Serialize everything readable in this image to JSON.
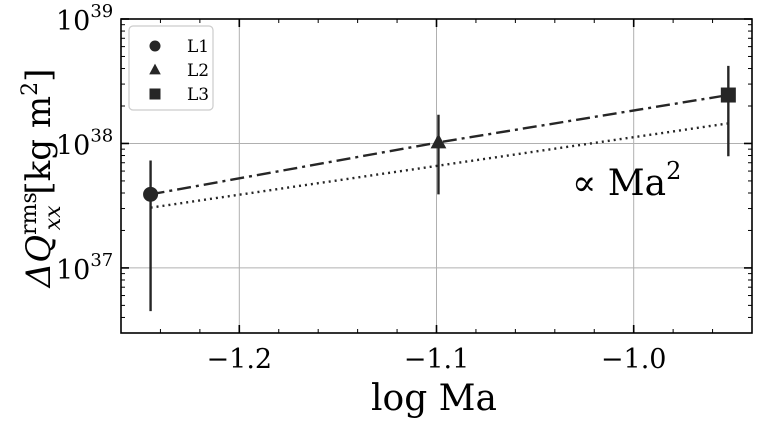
{
  "chart_data": {
    "type": "scatter",
    "title": "",
    "xlabel": "log Ma",
    "ylabel": {
      "prefix": "ΔQ",
      "superscript": "rms",
      "subscript": "xx",
      "unit_open": " [kg m",
      "unit_power": "2",
      "unit_close": "]"
    },
    "xlim": [
      -1.26,
      -0.94
    ],
    "ylim": [
      3e+36,
      1e+39
    ],
    "yscale": "log",
    "grid": true,
    "legend_position": "top-left",
    "x_ticks": [
      -1.2,
      -1.1,
      -1.0
    ],
    "x_tick_labels": [
      "−1.2",
      "−1.1",
      "−1.0"
    ],
    "y_ticks": [
      {
        "value": 1e+37,
        "base": "10",
        "exp": "37"
      },
      {
        "value": 1e+38,
        "base": "10",
        "exp": "38"
      },
      {
        "value": 1e+39,
        "base": "10",
        "exp": "39"
      }
    ],
    "series": [
      {
        "name": "L1",
        "marker": "circle",
        "x": -1.245,
        "y": 3.9e+37,
        "yerr_low": 4.5e+36,
        "yerr_high": 7.3e+37
      },
      {
        "name": "L2",
        "marker": "triangle",
        "x": -1.099,
        "y": 1.02e+38,
        "yerr_low": 3.9e+37,
        "yerr_high": 1.7e+38
      },
      {
        "name": "L3",
        "marker": "square",
        "x": -0.952,
        "y": 2.45e+38,
        "yerr_low": 7.9e+37,
        "yerr_high": 4.2e+38
      }
    ],
    "fit_line": {
      "style": "dashdot",
      "x": [
        -1.245,
        -1.099,
        -0.952
      ],
      "y": [
        3.9e+37,
        1.02e+38,
        2.45e+38
      ]
    },
    "reference_line": {
      "style": "dotted",
      "x": [
        -1.245,
        -0.952
      ],
      "y": [
        3.05e+37,
        1.45e+38
      ]
    },
    "annotation": {
      "text": "∝ Ma",
      "power": "2"
    },
    "colors": {
      "data": "#262626",
      "grid": "#b0b0b0",
      "axes": "#000000",
      "background": "#ffffff"
    }
  }
}
